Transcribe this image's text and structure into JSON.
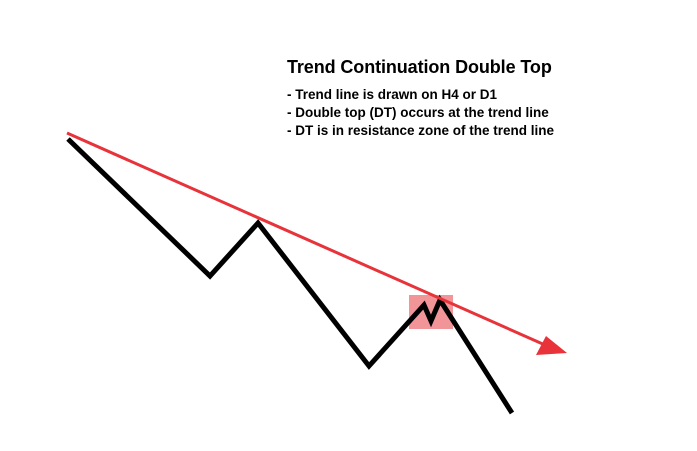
{
  "title": "Trend Continuation Double Top",
  "notes": [
    "- Trend line is drawn on H4 or D1",
    "- Double top (DT) occurs at the trend line",
    "- DT is in resistance zone of the trend line"
  ],
  "colors": {
    "trend_line": "#e8333a",
    "price_path": "#000000",
    "highlight_zone": "#f08a8e"
  },
  "icons": {
    "trend_arrow": "arrowhead-icon"
  }
}
